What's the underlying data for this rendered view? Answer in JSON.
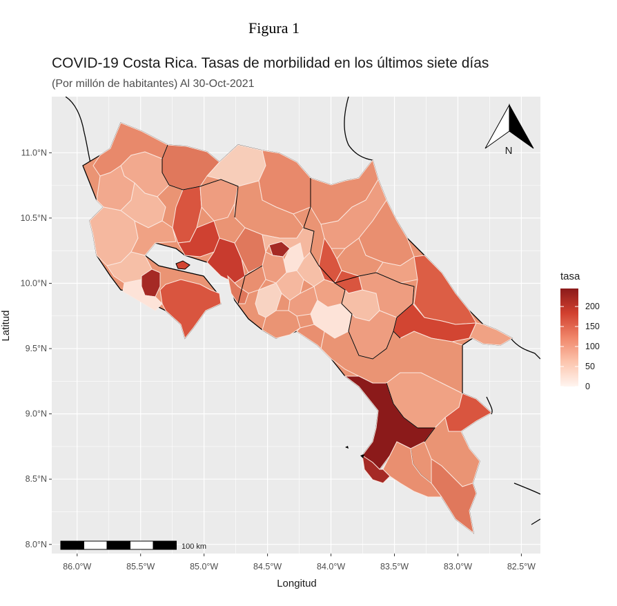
{
  "figure_label": "Figura 1",
  "title": "COVID-19 Costa Rica. Tasas de morbilidad en los últimos siete días",
  "subtitle": "(Por millón de habitantes) Al 30-Oct-2021",
  "axes": {
    "xlabel": "Longitud",
    "ylabel": "Latitud",
    "x_ticks": [
      {
        "value": -86.0,
        "label": "86.0°W"
      },
      {
        "value": -85.5,
        "label": "85.5°W"
      },
      {
        "value": -85.0,
        "label": "85.0°W"
      },
      {
        "value": -84.5,
        "label": "84.5°W"
      },
      {
        "value": -84.0,
        "label": "84.0°W"
      },
      {
        "value": -83.5,
        "label": "83.5°W"
      },
      {
        "value": -83.0,
        "label": "83.0°W"
      },
      {
        "value": -82.5,
        "label": "82.5°W"
      }
    ],
    "y_ticks": [
      {
        "value": 11.0,
        "label": "11.0°N"
      },
      {
        "value": 10.5,
        "label": "10.5°N"
      },
      {
        "value": 10.0,
        "label": "10.0°N"
      },
      {
        "value": 9.5,
        "label": "9.5°N"
      },
      {
        "value": 9.0,
        "label": "9.0°N"
      },
      {
        "value": 8.5,
        "label": "8.5°N"
      },
      {
        "value": 8.0,
        "label": "8.0°N"
      }
    ],
    "xlim": [
      -86.2,
      -82.35
    ],
    "ylim": [
      7.93,
      11.43
    ]
  },
  "legend": {
    "title": "tasa",
    "breaks": [
      0,
      50,
      100,
      150,
      200
    ],
    "range": [
      0,
      245
    ],
    "colors": {
      "low": "#fff5f0",
      "mid": "#f0866a",
      "high": "#8b1a1a"
    },
    "placement": "right"
  },
  "north_arrow": {
    "label": "N"
  },
  "scale_bar": {
    "label": "100 km",
    "segments": 5
  },
  "colors": {
    "panel": "#ebebeb",
    "grid": "#ffffff",
    "border": "#000000",
    "region_border": "#fbe8e0"
  }
}
